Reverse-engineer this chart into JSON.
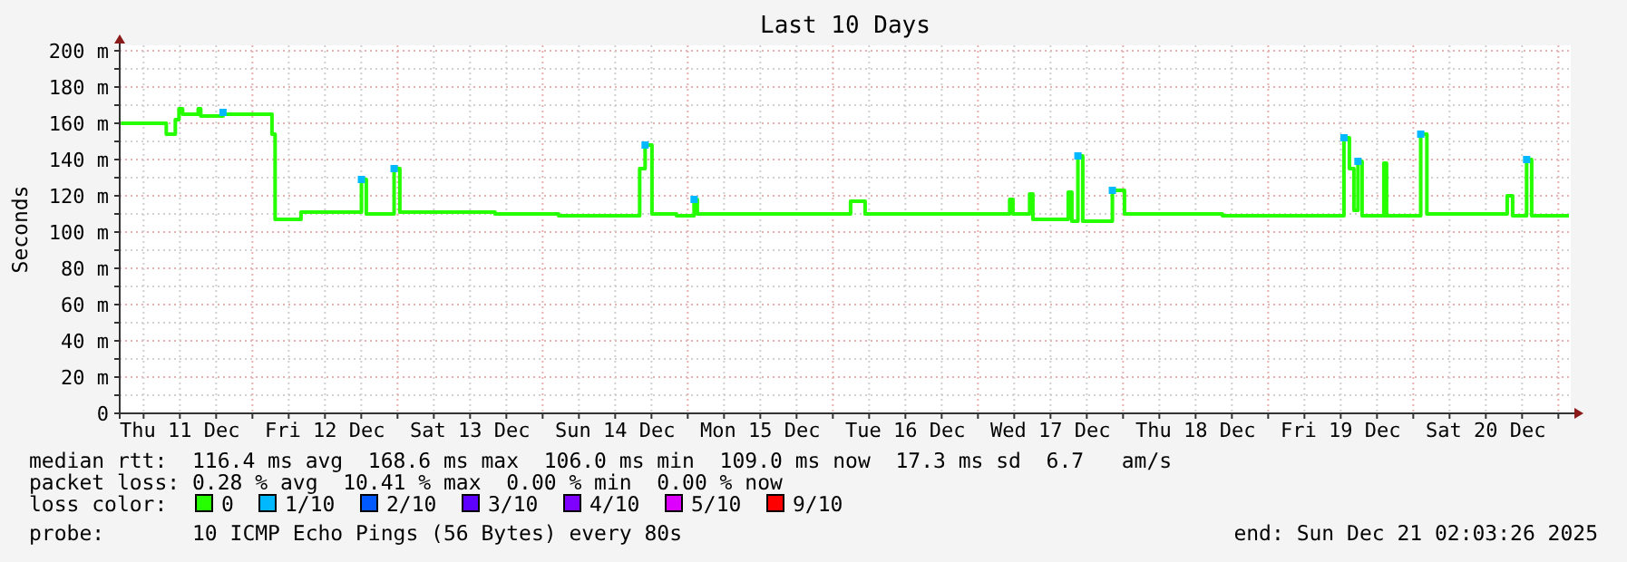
{
  "chart_data": {
    "type": "step",
    "title": "Last 10 Days",
    "ylabel": "Seconds",
    "legend_title": "loss color:",
    "xlim": [
      "2025-12-11T02:03",
      "2025-12-21T02:03"
    ],
    "xticks": [
      {
        "value": "2025-12-11T06:00",
        "label": null
      },
      {
        "value": "2025-12-11T12:00",
        "label": "Thu 11 Dec"
      },
      {
        "value": "2025-12-11T18:00",
        "label": null
      },
      {
        "value": "2025-12-12T00:00",
        "label": null
      },
      {
        "value": "2025-12-12T06:00",
        "label": null
      },
      {
        "value": "2025-12-12T12:00",
        "label": "Fri 12 Dec"
      },
      {
        "value": "2025-12-12T18:00",
        "label": null
      },
      {
        "value": "2025-12-13T00:00",
        "label": null
      },
      {
        "value": "2025-12-13T06:00",
        "label": null
      },
      {
        "value": "2025-12-13T12:00",
        "label": "Sat 13 Dec"
      },
      {
        "value": "2025-12-13T18:00",
        "label": null
      },
      {
        "value": "2025-12-14T00:00",
        "label": null
      },
      {
        "value": "2025-12-14T06:00",
        "label": null
      },
      {
        "value": "2025-12-14T12:00",
        "label": "Sun 14 Dec"
      },
      {
        "value": "2025-12-14T18:00",
        "label": null
      },
      {
        "value": "2025-12-15T00:00",
        "label": null
      },
      {
        "value": "2025-12-15T06:00",
        "label": null
      },
      {
        "value": "2025-12-15T12:00",
        "label": "Mon 15 Dec"
      },
      {
        "value": "2025-12-15T18:00",
        "label": null
      },
      {
        "value": "2025-12-16T00:00",
        "label": null
      },
      {
        "value": "2025-12-16T06:00",
        "label": null
      },
      {
        "value": "2025-12-16T12:00",
        "label": "Tue 16 Dec"
      },
      {
        "value": "2025-12-16T18:00",
        "label": null
      },
      {
        "value": "2025-12-17T00:00",
        "label": null
      },
      {
        "value": "2025-12-17T06:00",
        "label": null
      },
      {
        "value": "2025-12-17T12:00",
        "label": "Wed 17 Dec"
      },
      {
        "value": "2025-12-17T18:00",
        "label": null
      },
      {
        "value": "2025-12-18T00:00",
        "label": null
      },
      {
        "value": "2025-12-18T06:00",
        "label": null
      },
      {
        "value": "2025-12-18T12:00",
        "label": "Thu 18 Dec"
      },
      {
        "value": "2025-12-18T18:00",
        "label": null
      },
      {
        "value": "2025-12-19T00:00",
        "label": null
      },
      {
        "value": "2025-12-19T06:00",
        "label": null
      },
      {
        "value": "2025-12-19T12:00",
        "label": "Fri 19 Dec"
      },
      {
        "value": "2025-12-19T18:00",
        "label": null
      },
      {
        "value": "2025-12-20T00:00",
        "label": null
      },
      {
        "value": "2025-12-20T06:00",
        "label": null
      },
      {
        "value": "2025-12-20T12:00",
        "label": "Sat 20 Dec"
      },
      {
        "value": "2025-12-20T18:00",
        "label": null
      },
      {
        "value": "2025-12-21T00:00",
        "label": null
      }
    ],
    "ylim": [
      0,
      203
    ],
    "yticks": [
      0,
      {
        "value": 10,
        "label": null
      },
      {
        "value": 20,
        "label": "20 m"
      },
      {
        "value": 30,
        "label": null
      },
      {
        "value": 40,
        "label": "40 m"
      },
      {
        "value": 50,
        "label": null
      },
      {
        "value": 60,
        "label": "60 m"
      },
      {
        "value": 70,
        "label": null
      },
      {
        "value": 80,
        "label": "80 m"
      },
      {
        "value": 90,
        "label": null
      },
      {
        "value": 100,
        "label": "100 m"
      },
      {
        "value": 110,
        "label": null
      },
      {
        "value": 120,
        "label": "120 m"
      },
      {
        "value": 130,
        "label": null
      },
      {
        "value": 140,
        "label": "140 m"
      },
      {
        "value": 150,
        "label": null
      },
      {
        "value": 160,
        "label": "160 m"
      },
      {
        "value": 170,
        "label": null
      },
      {
        "value": 180,
        "label": "180 m"
      },
      {
        "value": 190,
        "label": null
      },
      {
        "value": 200,
        "label": "200 m"
      }
    ],
    "grid": true,
    "legend": "bottom",
    "series": [
      {
        "name": "0",
        "color": "#26ff00",
        "x": [
          "2025-12-11T02:15",
          "2025-12-11T09:45",
          "2025-12-11T11:15",
          "2025-12-11T11:51",
          "2025-12-11T12:27",
          "2025-12-11T15:02",
          "2025-12-11T15:27",
          "2025-12-11T19:08",
          "2025-12-12T03:14",
          "2025-12-12T03:45",
          "2025-12-12T08:02",
          "2025-12-12T18:02",
          "2025-12-12T18:50",
          "2025-12-12T23:26",
          "2025-12-13T00:23",
          "2025-12-13T16:08",
          "2025-12-14T02:38",
          "2025-12-14T16:03",
          "2025-12-14T16:57",
          "2025-12-14T18:05",
          "2025-12-14T22:08",
          "2025-12-15T01:03",
          "2025-12-15T01:35",
          "2025-12-16T02:56",
          "2025-12-16T05:20",
          "2025-12-17T05:15",
          "2025-12-17T05:47",
          "2025-12-17T08:33",
          "2025-12-17T09:05",
          "2025-12-17T14:56",
          "2025-12-17T15:32",
          "2025-12-17T16:32",
          "2025-12-17T17:20",
          "2025-12-17T22:14",
          "2025-12-18T00:14",
          "2025-12-18T03:45",
          "2025-12-18T16:26",
          "2025-12-19T12:32",
          "2025-12-19T13:26",
          "2025-12-19T14:11",
          "2025-12-19T14:51",
          "2025-12-19T15:32",
          "2025-12-19T19:08",
          "2025-12-19T19:35",
          "2025-12-20T01:14",
          "2025-12-20T02:15",
          "2025-12-20T15:32",
          "2025-12-20T16:26",
          "2025-12-20T18:45",
          "2025-12-20T19:35",
          "2025-12-21T01:44"
        ],
        "values": [
          160,
          154,
          162,
          168,
          165,
          168,
          164,
          165,
          154,
          107,
          111,
          129,
          110,
          135,
          111,
          110,
          109,
          135,
          148,
          110,
          109,
          118,
          110,
          117,
          110,
          118,
          110,
          121,
          107,
          122,
          106,
          142,
          106,
          123,
          110,
          110,
          109,
          152,
          135,
          112,
          139,
          109,
          138,
          109,
          154,
          110,
          120,
          109,
          140,
          109,
          109
        ]
      },
      {
        "name": "1/10",
        "color": "#00b8ff",
        "type": "scatter",
        "marker": "square",
        "x": [
          "2025-12-11T19:08",
          "2025-12-12T18:02",
          "2025-12-12T23:26",
          "2025-12-14T16:57",
          "2025-12-15T01:03",
          "2025-12-17T16:32",
          "2025-12-17T22:14",
          "2025-12-19T12:32",
          "2025-12-19T14:51",
          "2025-12-20T01:14",
          "2025-12-20T18:45"
        ],
        "values": [
          166,
          129,
          135,
          148,
          118,
          142,
          123,
          152,
          139,
          154,
          140
        ]
      },
      {
        "name": "2/10",
        "color": "#0059ff",
        "type": "scatter",
        "marker": "square"
      },
      {
        "name": "3/10",
        "color": "#5e00ff",
        "type": "scatter",
        "marker": "square"
      },
      {
        "name": "4/10",
        "color": "#7e00ff",
        "type": "scatter",
        "marker": "square"
      },
      {
        "name": "5/10",
        "color": "#dd00ff",
        "type": "scatter",
        "marker": "square"
      },
      {
        "name": "9/10",
        "color": "#ff0000",
        "type": "scatter",
        "marker": "square"
      }
    ],
    "annotations": [
      "median rtt:  116.4 ms avg  168.6 ms max  106.0 ms min  109.0 ms now  17.3 ms sd  6.7   am/s",
      "packet loss: 0.28 % avg  10.41 % max  0.00 % min  0.00 % now",
      "probe:       10 ICMP Echo Pings (56 Bytes) every 80s",
      "end: Sun Dec 21 02:03:26 2025"
    ]
  }
}
